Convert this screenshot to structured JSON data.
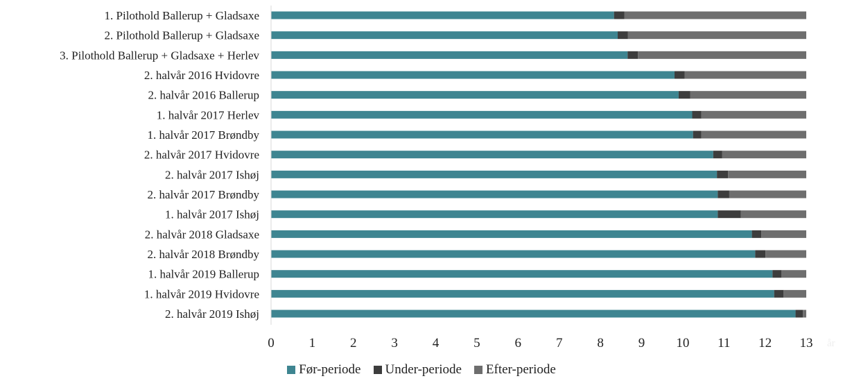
{
  "chart_data": {
    "type": "bar",
    "orientation": "horizontal",
    "stacked": true,
    "title": "",
    "xlabel": "år",
    "ylabel": "",
    "xlim": [
      0,
      13
    ],
    "x_ticks": [
      "0",
      "1",
      "2",
      "3",
      "4",
      "5",
      "6",
      "7",
      "8",
      "9",
      "10",
      "11",
      "12",
      "13"
    ],
    "grid": false,
    "legend_position": "bottom",
    "categories": [
      "1. Pilothold Ballerup + Gladsaxe",
      "2. Pilothold Ballerup + Gladsaxe",
      "3. Pilothold Ballerup + Gladsaxe + Herlev",
      "2. halvår 2016 Hvidovre",
      "2. halvår 2016 Ballerup",
      "1. halvår 2017 Herlev",
      "1. halvår 2017 Brøndby",
      "2. halvår 2017 Hvidovre",
      "2. halvår 2017 Ishøj",
      "2. halvår 2017 Brøndby",
      "1. halvår 2017 Ishøj",
      "2. halvår 2018 Gladsaxe",
      "2. halvår 2018 Brøndby",
      "1. halvår 2019 Ballerup",
      "1. halvår 2019 Hvidovre",
      "2. halvår 2019 Ishøj"
    ],
    "series": [
      {
        "name": "Før-periode",
        "color": "#3e8591",
        "values": [
          8.33,
          8.42,
          8.66,
          9.8,
          9.9,
          10.23,
          10.25,
          10.74,
          10.83,
          10.85,
          10.85,
          11.68,
          11.76,
          12.18,
          12.22,
          12.74
        ]
      },
      {
        "name": "Under-periode",
        "color": "#3d3d3d",
        "values": [
          0.25,
          0.25,
          0.25,
          0.25,
          0.28,
          0.22,
          0.2,
          0.22,
          0.27,
          0.28,
          0.56,
          0.23,
          0.25,
          0.22,
          0.23,
          0.18
        ]
      },
      {
        "name": "Efter-periode",
        "color": "#6e6e6e",
        "values": [
          4.42,
          4.33,
          4.09,
          2.95,
          2.82,
          2.55,
          2.55,
          2.04,
          1.9,
          1.87,
          1.59,
          1.09,
          0.99,
          0.6,
          0.55,
          0.08
        ]
      }
    ]
  }
}
